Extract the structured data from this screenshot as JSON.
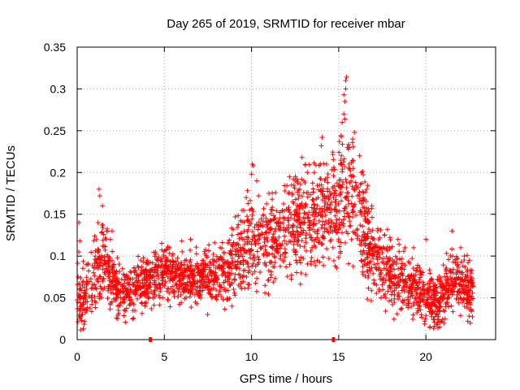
{
  "chart_data": {
    "type": "scatter",
    "title": "Day 265 of 2019, SRMTID for receiver mbar",
    "xlabel": "GPS time / hours",
    "ylabel": "SRMTID / TECUs",
    "xlim": [
      0,
      24
    ],
    "ylim": [
      0,
      0.35
    ],
    "xticks": [
      0,
      5,
      10,
      15,
      20
    ],
    "xtick_labels": [
      "0",
      "5",
      "10",
      "15",
      "20"
    ],
    "yticks": [
      0,
      0.05,
      0.1,
      0.15,
      0.2,
      0.25,
      0.3,
      0.35
    ],
    "ytick_labels": [
      "0",
      "0.05",
      "0.1",
      "0.15",
      "0.2",
      "0.25",
      "0.3",
      "0.35"
    ],
    "grid": true,
    "marker": "+",
    "color": "#ff0000",
    "gap_markers_x": [
      4.2,
      14.7
    ],
    "trend": [
      [
        0.0,
        0.05
      ],
      [
        0.5,
        0.055
      ],
      [
        1.0,
        0.075
      ],
      [
        1.5,
        0.1
      ],
      [
        2.0,
        0.07
      ],
      [
        2.5,
        0.055
      ],
      [
        3.0,
        0.06
      ],
      [
        3.5,
        0.065
      ],
      [
        4.0,
        0.07
      ],
      [
        4.5,
        0.075
      ],
      [
        5.0,
        0.08
      ],
      [
        6.0,
        0.075
      ],
      [
        7.0,
        0.072
      ],
      [
        8.0,
        0.075
      ],
      [
        8.7,
        0.085
      ],
      [
        9.3,
        0.105
      ],
      [
        10.0,
        0.12
      ],
      [
        11.0,
        0.115
      ],
      [
        12.0,
        0.13
      ],
      [
        13.0,
        0.14
      ],
      [
        13.8,
        0.155
      ],
      [
        14.5,
        0.15
      ],
      [
        15.0,
        0.17
      ],
      [
        15.5,
        0.18
      ],
      [
        16.0,
        0.16
      ],
      [
        16.5,
        0.13
      ],
      [
        17.0,
        0.1
      ],
      [
        17.5,
        0.085
      ],
      [
        18.5,
        0.07
      ],
      [
        19.5,
        0.06
      ],
      [
        20.0,
        0.05
      ],
      [
        20.5,
        0.045
      ],
      [
        21.0,
        0.05
      ],
      [
        21.5,
        0.08
      ],
      [
        22.0,
        0.065
      ],
      [
        22.7,
        0.06
      ]
    ],
    "spread": [
      [
        0.0,
        0.02
      ],
      [
        1.0,
        0.025
      ],
      [
        1.5,
        0.03
      ],
      [
        2.0,
        0.02
      ],
      [
        4.0,
        0.018
      ],
      [
        8.5,
        0.02
      ],
      [
        9.5,
        0.03
      ],
      [
        12.0,
        0.035
      ],
      [
        14.5,
        0.04
      ],
      [
        15.5,
        0.045
      ],
      [
        16.5,
        0.035
      ],
      [
        17.5,
        0.025
      ],
      [
        20.0,
        0.02
      ],
      [
        22.7,
        0.02
      ]
    ],
    "outliers": [
      [
        0.1,
        0.14
      ],
      [
        0.15,
        0.118
      ],
      [
        0.1,
        0.105
      ],
      [
        0.15,
        0.06
      ],
      [
        0.05,
        0.075
      ],
      [
        0.25,
        0.04
      ],
      [
        0.3,
        0.03
      ],
      [
        0.35,
        0.013
      ],
      [
        0.6,
        0.09
      ],
      [
        1.25,
        0.18
      ],
      [
        1.3,
        0.172
      ],
      [
        1.45,
        0.16
      ],
      [
        1.2,
        0.14
      ],
      [
        1.7,
        0.13
      ],
      [
        1.9,
        0.12
      ],
      [
        2.0,
        0.13
      ],
      [
        3.65,
        0.095
      ],
      [
        4.5,
        0.105
      ],
      [
        5.3,
        0.11
      ],
      [
        6.0,
        0.118
      ],
      [
        6.5,
        0.12
      ],
      [
        8.2,
        0.11
      ],
      [
        9.7,
        0.17
      ],
      [
        10.05,
        0.21
      ],
      [
        10.1,
        0.208
      ],
      [
        10.0,
        0.198
      ],
      [
        10.3,
        0.19
      ],
      [
        10.4,
        0.172
      ],
      [
        11.0,
        0.175
      ],
      [
        11.8,
        0.14
      ],
      [
        12.3,
        0.185
      ],
      [
        12.35,
        0.175
      ],
      [
        12.5,
        0.15
      ],
      [
        13.0,
        0.19
      ],
      [
        13.2,
        0.2
      ],
      [
        13.6,
        0.2
      ],
      [
        13.9,
        0.185
      ],
      [
        14.05,
        0.242
      ],
      [
        14.0,
        0.232
      ],
      [
        14.3,
        0.21
      ],
      [
        14.8,
        0.088
      ],
      [
        15.1,
        0.21
      ],
      [
        15.15,
        0.22
      ],
      [
        15.2,
        0.26
      ],
      [
        15.3,
        0.27
      ],
      [
        15.35,
        0.264
      ],
      [
        15.4,
        0.31
      ],
      [
        15.45,
        0.314
      ],
      [
        15.4,
        0.3
      ],
      [
        15.3,
        0.293
      ],
      [
        15.35,
        0.285
      ],
      [
        15.5,
        0.23
      ],
      [
        15.6,
        0.21
      ],
      [
        15.8,
        0.24
      ],
      [
        15.9,
        0.248
      ],
      [
        16.2,
        0.22
      ],
      [
        16.3,
        0.2
      ],
      [
        16.9,
        0.16
      ],
      [
        16.7,
        0.14
      ],
      [
        17.8,
        0.132
      ],
      [
        17.2,
        0.11
      ],
      [
        18.4,
        0.12
      ],
      [
        18.8,
        0.11
      ],
      [
        19.3,
        0.11
      ],
      [
        20.0,
        0.12
      ],
      [
        20.5,
        0.016
      ],
      [
        20.9,
        0.022
      ],
      [
        21.1,
        0.025
      ],
      [
        21.5,
        0.13
      ],
      [
        22.2,
        0.1
      ],
      [
        22.0,
        0.11
      ],
      [
        22.5,
        0.095
      ],
      [
        22.4,
        0.022
      ],
      [
        22.6,
        0.035
      ],
      [
        16.5,
        0.122
      ],
      [
        13.3,
        0.14
      ],
      [
        11.3,
        0.1
      ]
    ]
  }
}
